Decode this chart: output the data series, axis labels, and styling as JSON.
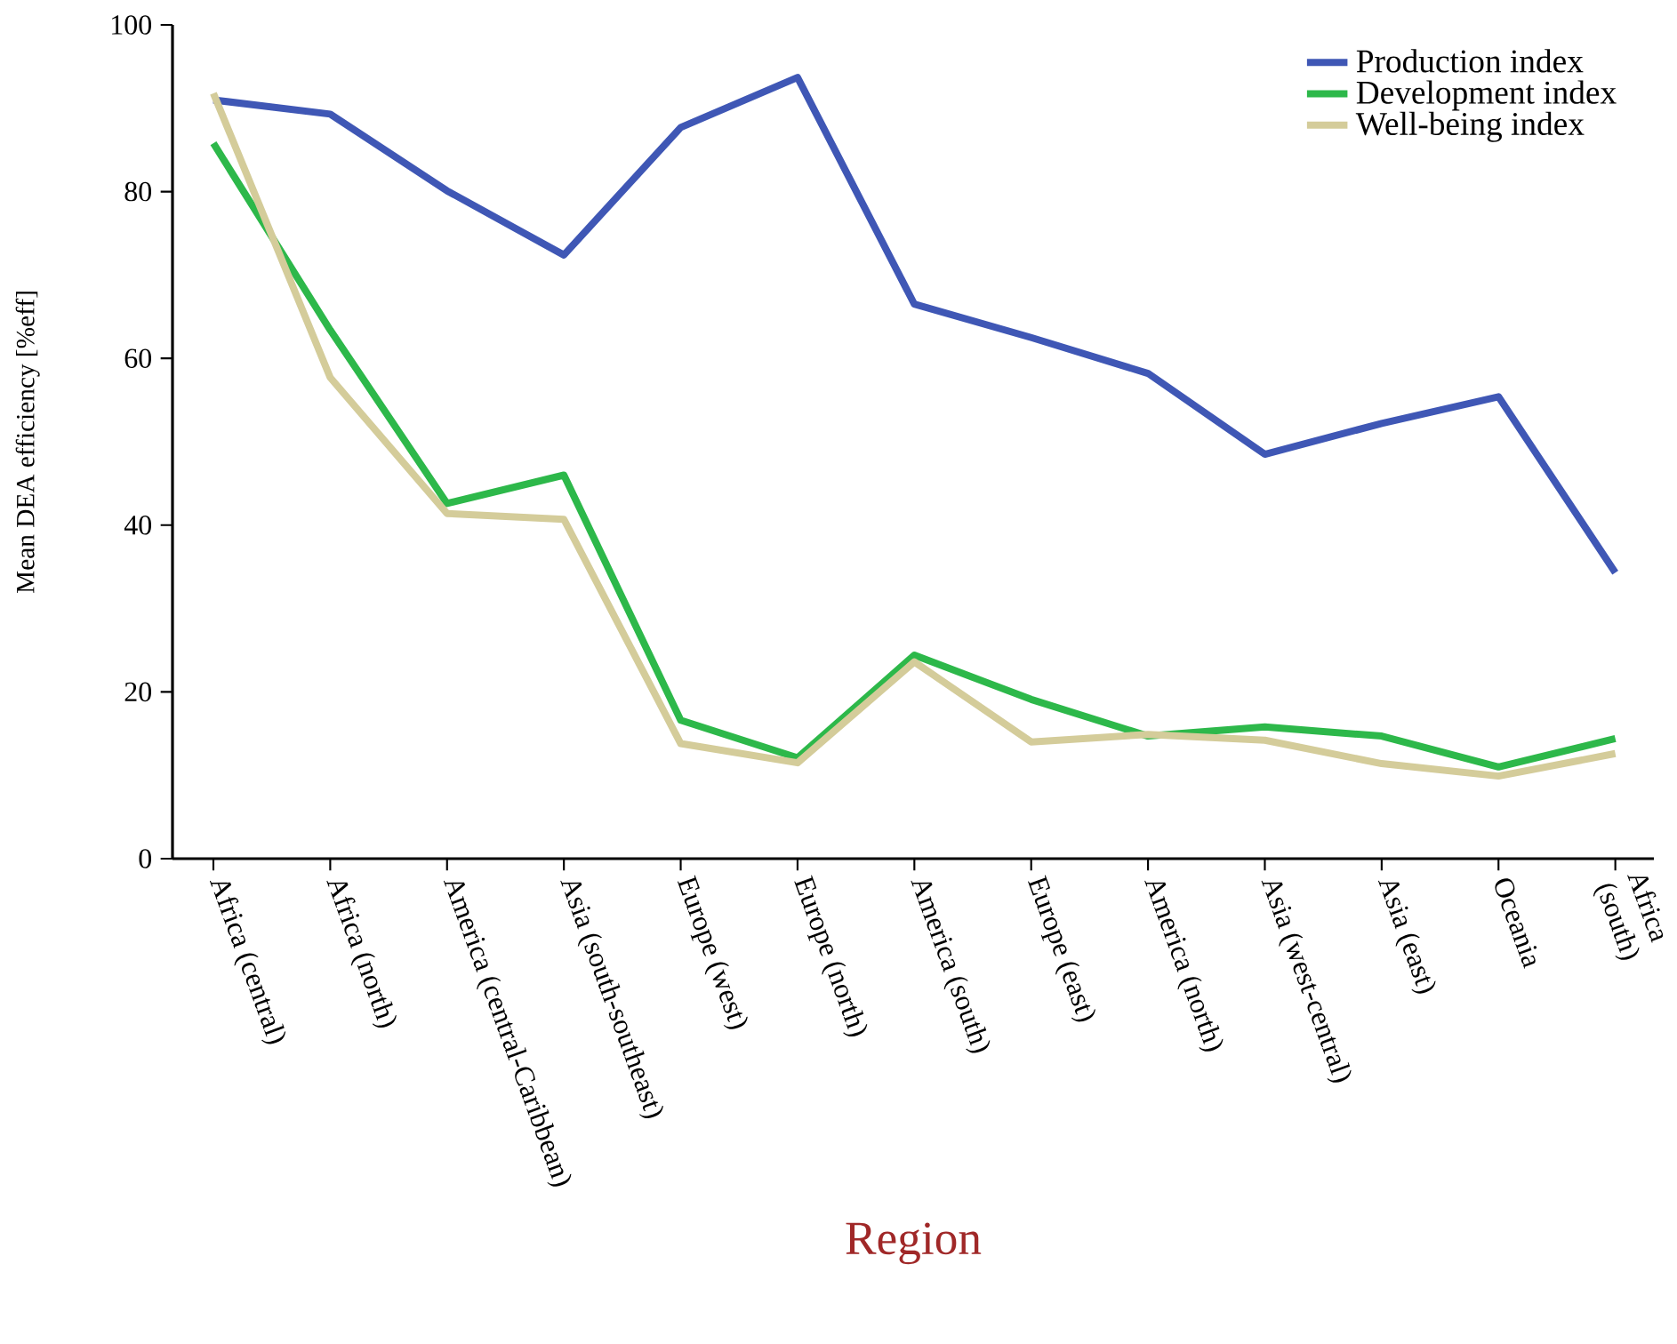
{
  "chart_data": {
    "type": "line",
    "xlabel": "Region",
    "ylabel": "Mean DEA efficiency [%eff]",
    "categories": [
      "Africa (central)",
      "Africa (north)",
      "America (central-Caribbean)",
      "Asia (south-southeast)",
      "Europe (west)",
      "Europe (north)",
      "America (south)",
      "Europe (east)",
      "America (north)",
      "Asia (west-central)",
      "Asia (east)",
      "Oceania",
      "Africa (south)"
    ],
    "series": [
      {
        "name": "Production index",
        "color": "#3f57b5",
        "values": [
          91.0,
          89.3,
          80.1,
          72.4,
          87.7,
          93.7,
          66.5,
          62.5,
          58.2,
          48.5,
          52.2,
          55.4,
          34.3
        ]
      },
      {
        "name": "Development index",
        "color": "#2db84a",
        "values": [
          85.8,
          63.4,
          42.6,
          46.0,
          16.6,
          12.1,
          24.4,
          19.1,
          14.7,
          15.8,
          14.7,
          11.0,
          14.4
        ]
      },
      {
        "name": "Well-being index",
        "color": "#d4cc9a",
        "values": [
          91.8,
          57.7,
          41.4,
          40.7,
          13.8,
          11.5,
          23.6,
          14.0,
          14.9,
          14.2,
          11.4,
          9.9,
          12.6
        ]
      }
    ],
    "ylim": [
      0,
      100
    ],
    "yticks": [
      0,
      20,
      40,
      60,
      80,
      100
    ],
    "grid": false,
    "legend": "top right",
    "marker": "none",
    "line_style": "solid"
  }
}
